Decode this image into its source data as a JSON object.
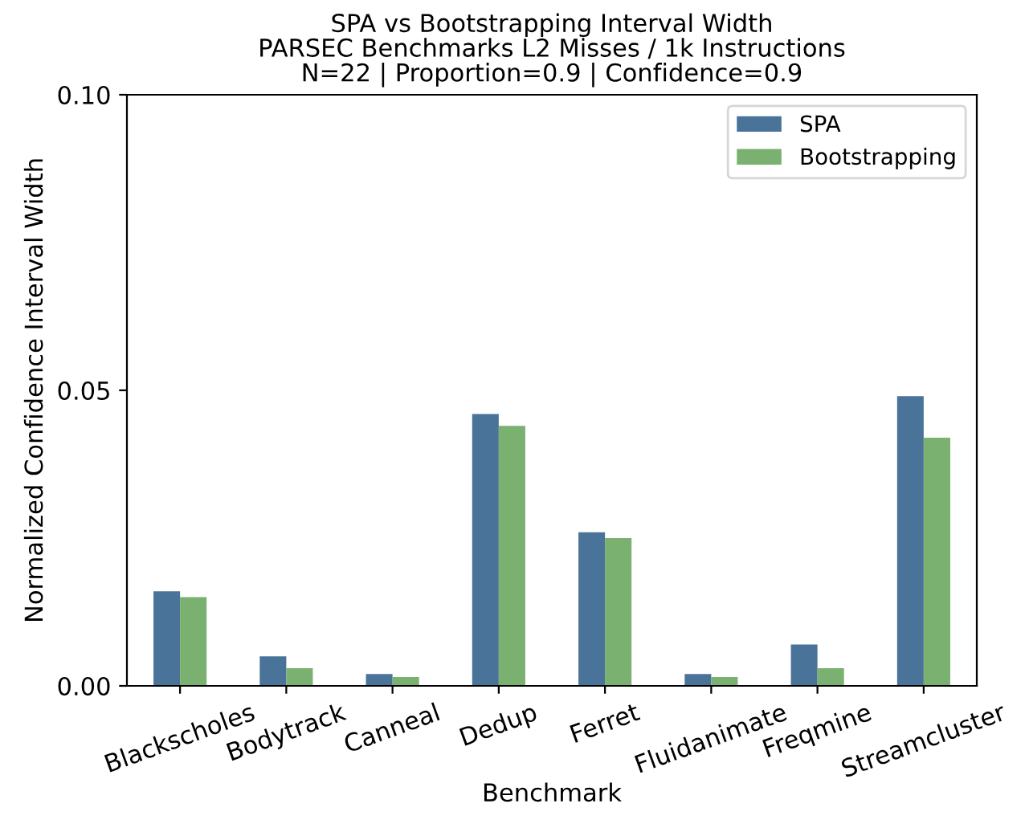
{
  "chart_data": {
    "type": "bar",
    "title": "SPA vs Bootstrapping Interval Width\nPARSEC Benchmarks L2 Misses / 1k Instructions\nN=22 | Proportion=0.9 | Confidence=0.9",
    "xlabel": "Benchmark",
    "ylabel": "Normalized Confidence Interval Width",
    "categories": [
      "Blackscholes",
      "Bodytrack",
      "Canneal",
      "Dedup",
      "Ferret",
      "Fluidanimate",
      "Freqmine",
      "Streamcluster"
    ],
    "series": [
      {
        "name": "SPA",
        "color": "#4a7399",
        "values": [
          0.016,
          0.005,
          0.002,
          0.046,
          0.026,
          0.002,
          0.007,
          0.049
        ]
      },
      {
        "name": "Bootstrapping",
        "color": "#7ab070",
        "values": [
          0.015,
          0.003,
          0.0015,
          0.044,
          0.025,
          0.0015,
          0.003,
          0.042
        ]
      }
    ],
    "ylim": [
      0,
      0.1
    ],
    "yticks": [
      {
        "value": 0,
        "label": "0.00"
      },
      {
        "value": 0.05,
        "label": "0.05"
      },
      {
        "value": 0.1,
        "label": "0.10"
      }
    ],
    "legend": "top right",
    "grid": false
  }
}
